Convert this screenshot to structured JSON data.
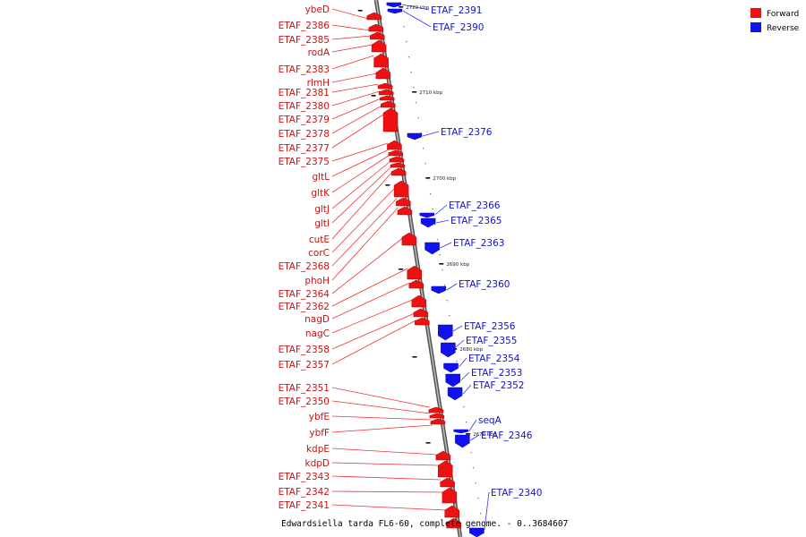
{
  "caption": "Edwardsiella tarda FL6-60, complete genome. - 0..3684607",
  "legend": [
    {
      "label": "Forward",
      "color": "#ee1111"
    },
    {
      "label": "Reverse",
      "color": "#1111ee"
    }
  ],
  "colors": {
    "forward": "#ee1111",
    "reverse": "#1111ee",
    "backbone": "#888888"
  },
  "ticks": [
    "2720 kbp",
    "2710 kbp",
    "2700 kbp",
    "2690 kbp",
    "2680 kbp",
    "2670 kbp"
  ],
  "forward_genes": [
    "ybeD",
    "ETAF_2386",
    "ETAF_2385",
    "rodA",
    "ETAF_2383",
    "rlmH",
    "ETAF_2381",
    "ETAF_2380",
    "ETAF_2379",
    "ETAF_2378",
    "ETAF_2377",
    "ETAF_2375",
    "gltL",
    "gltK",
    "gltJ",
    "gltI",
    "cutE",
    "corC",
    "ETAF_2368",
    "phoH",
    "ETAF_2364",
    "ETAF_2362",
    "nagD",
    "nagC",
    "ETAF_2358",
    "ETAF_2357",
    "ETAF_2351",
    "ETAF_2350",
    "ybfE",
    "ybfF",
    "kdpE",
    "kdpD",
    "ETAF_2343",
    "ETAF_2342",
    "ETAF_2341"
  ],
  "reverse_genes": [
    "ETAF_2391",
    "ETAF_2390",
    "ETAF_2376",
    "ETAF_2366",
    "ETAF_2365",
    "ETAF_2363",
    "ETAF_2360",
    "ETAF_2356",
    "ETAF_2355",
    "ETAF_2354",
    "ETAF_2353",
    "ETAF_2352",
    "seqA",
    "ETAF_2346",
    "ETAF_2340"
  ]
}
